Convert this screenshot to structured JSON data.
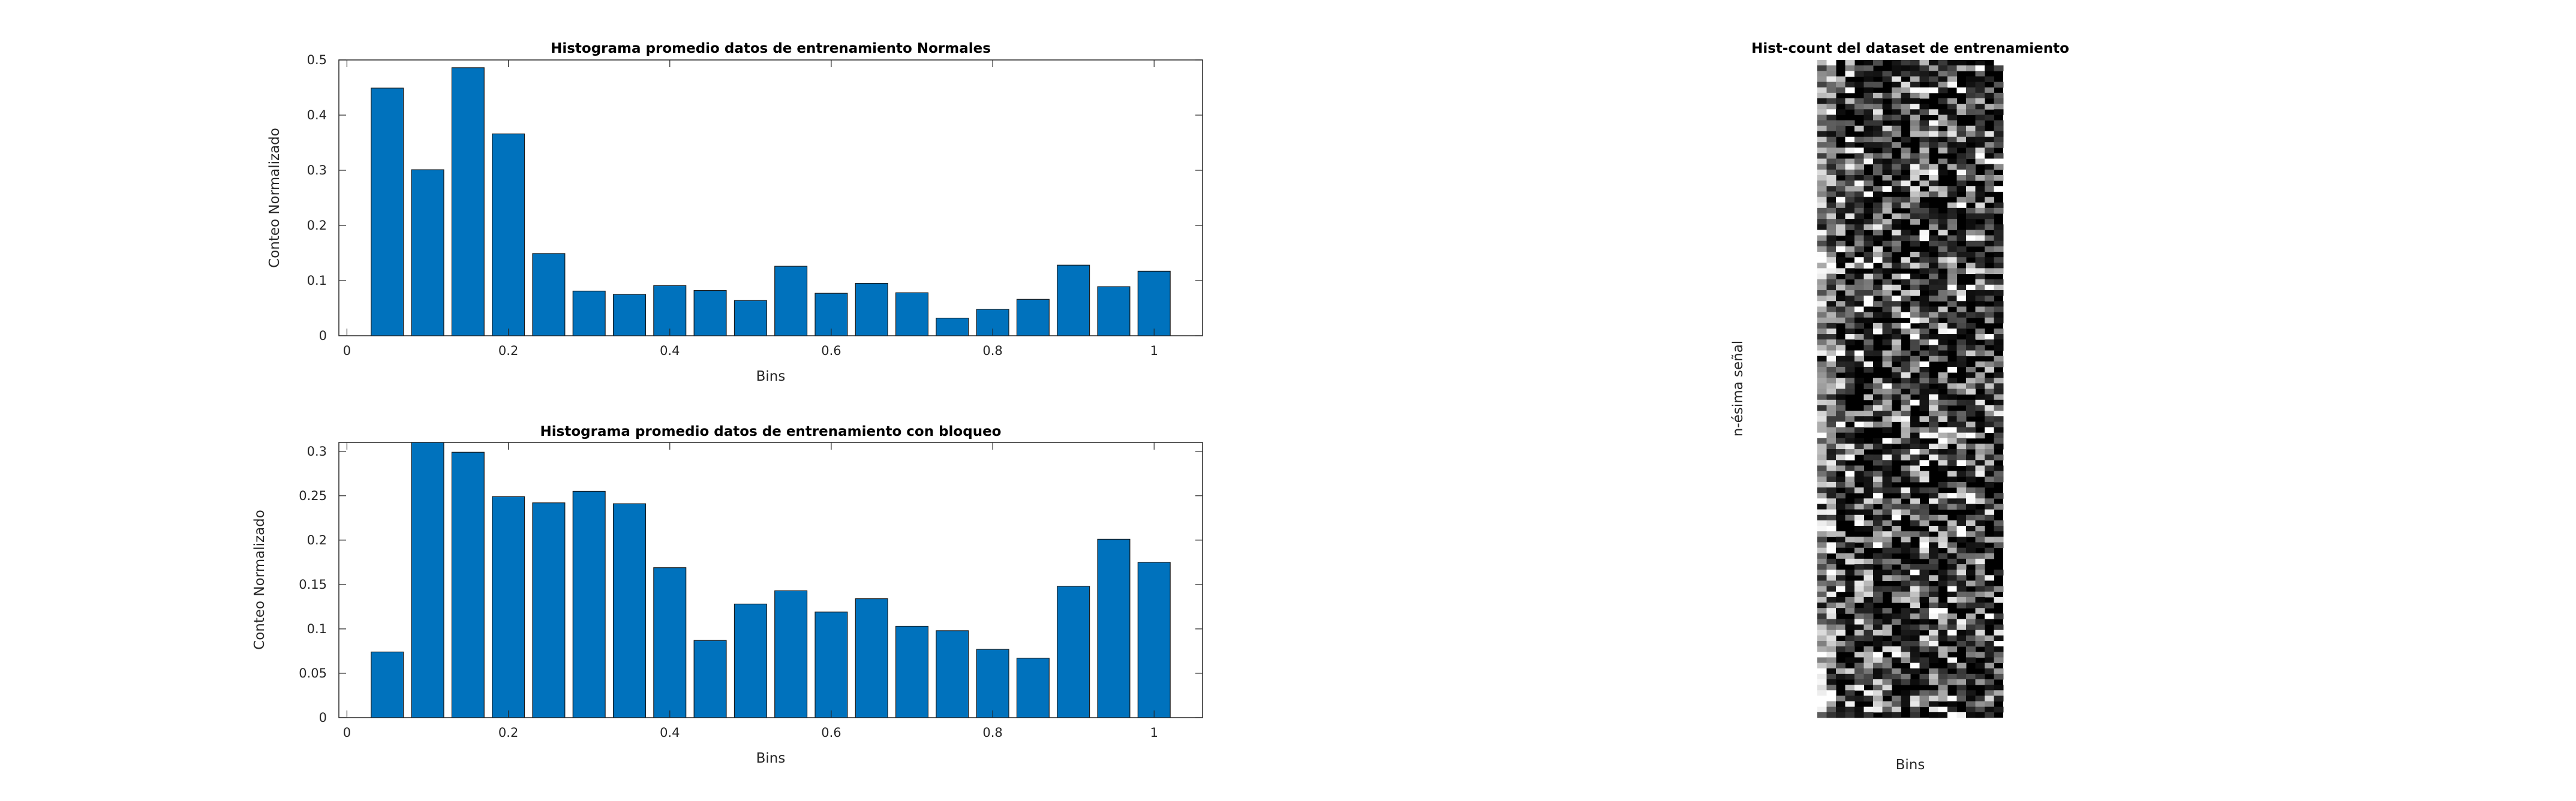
{
  "charts": {
    "top": {
      "type": "bar",
      "title": "Histograma promedio datos de entrenamiento Normales",
      "xlabel": "Bins",
      "ylabel": "Conteo Normalizado",
      "color": "#0072bd",
      "x": [
        0.05,
        0.1,
        0.15,
        0.2,
        0.25,
        0.3,
        0.35,
        0.4,
        0.45,
        0.5,
        0.55,
        0.6,
        0.65,
        0.7,
        0.75,
        0.8,
        0.85,
        0.9,
        0.95,
        1.0
      ],
      "values": [
        0.449,
        0.301,
        0.486,
        0.366,
        0.149,
        0.081,
        0.075,
        0.091,
        0.082,
        0.064,
        0.126,
        0.077,
        0.095,
        0.078,
        0.032,
        0.048,
        0.066,
        0.128,
        0.089,
        0.117
      ],
      "xlim": [
        -0.01,
        1.06
      ],
      "ylim": [
        0,
        0.5
      ],
      "xticks": [
        0,
        0.2,
        0.4,
        0.6,
        0.8,
        1
      ],
      "xtick_labels": [
        "0",
        "0.2",
        "0.4",
        "0.6",
        "0.8",
        "1"
      ],
      "yticks": [
        0,
        0.1,
        0.2,
        0.3,
        0.4,
        0.5
      ],
      "ytick_labels": [
        "0",
        "0.1",
        "0.2",
        "0.3",
        "0.4",
        "0.5"
      ]
    },
    "bottom": {
      "type": "bar",
      "title": "Histograma promedio datos de entrenamiento con bloqueo",
      "xlabel": "Bins",
      "ylabel": "Conteo Normalizado",
      "color": "#0072bd",
      "x": [
        0.05,
        0.1,
        0.15,
        0.2,
        0.25,
        0.3,
        0.35,
        0.4,
        0.45,
        0.5,
        0.55,
        0.6,
        0.65,
        0.7,
        0.75,
        0.8,
        0.85,
        0.9,
        0.95,
        1.0
      ],
      "values": [
        0.074,
        0.315,
        0.299,
        0.249,
        0.242,
        0.255,
        0.241,
        0.169,
        0.087,
        0.128,
        0.143,
        0.119,
        0.134,
        0.103,
        0.098,
        0.077,
        0.067,
        0.148,
        0.201,
        0.175
      ],
      "xlim": [
        -0.01,
        1.06
      ],
      "ylim": [
        0,
        0.31
      ],
      "xticks": [
        0,
        0.2,
        0.4,
        0.6,
        0.8,
        1
      ],
      "xtick_labels": [
        "0",
        "0.2",
        "0.4",
        "0.6",
        "0.8",
        "1"
      ],
      "yticks": [
        0,
        0.05,
        0.1,
        0.15,
        0.2,
        0.25,
        0.3
      ],
      "ytick_labels": [
        "0",
        "0.05",
        "0.1",
        "0.15",
        "0.2",
        "0.25",
        "0.3"
      ]
    },
    "heatmap": {
      "type": "heatmap",
      "title": "Hist-count del dataset de entrenamiento",
      "xlabel": "Bins",
      "ylabel": "n-ésima señal",
      "colormap": "gray",
      "cols": 20,
      "rows": 120,
      "seed": 13
    }
  }
}
